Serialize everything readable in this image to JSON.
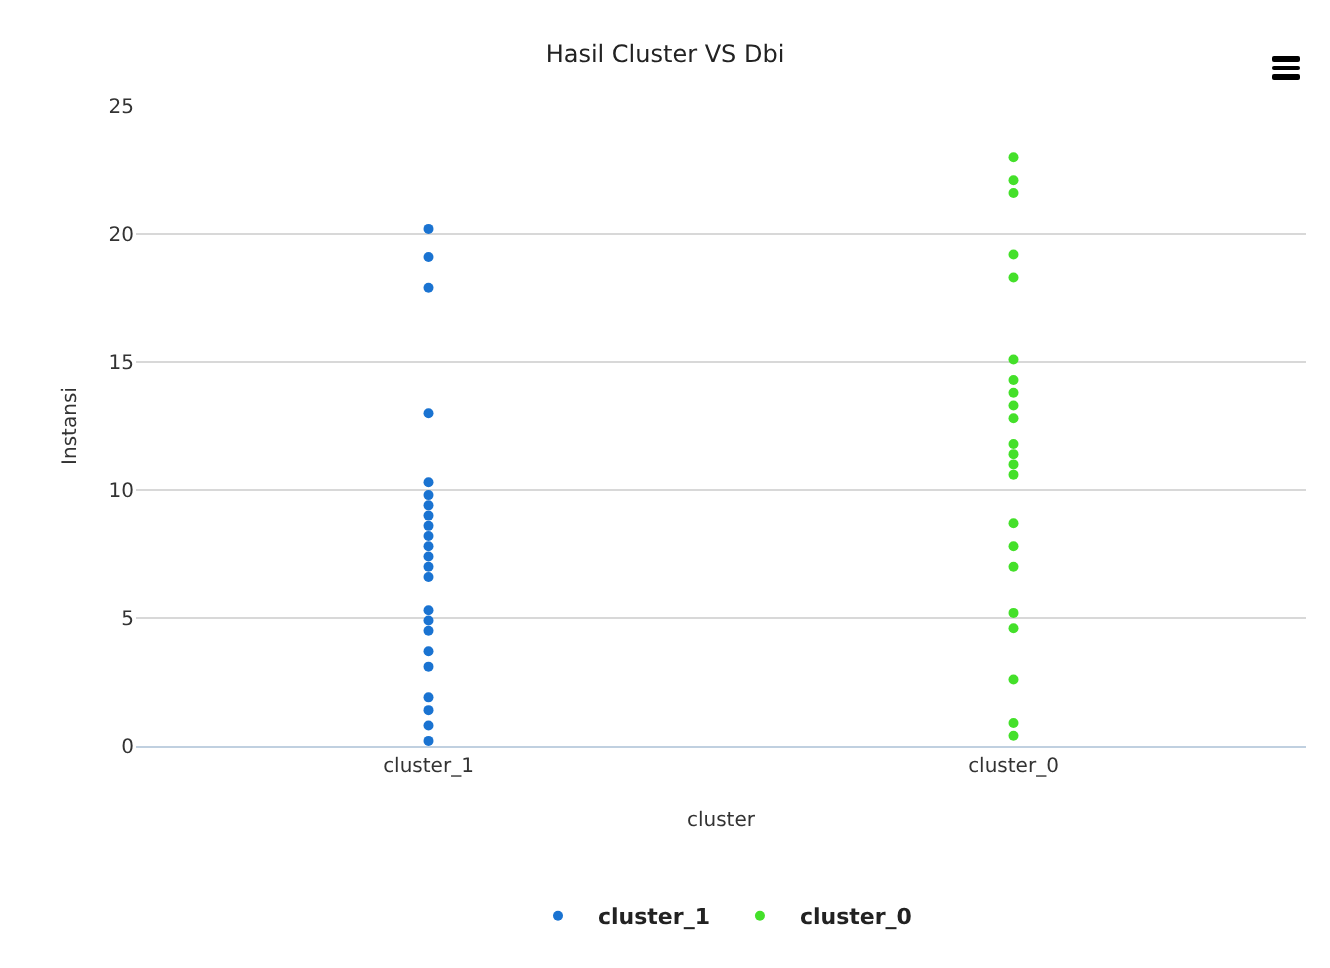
{
  "chart_data": {
    "type": "scatter",
    "title": "Hasil Cluster VS Dbi",
    "xlabel": "cluster",
    "ylabel": "Instansi",
    "categories": [
      "cluster_1",
      "cluster_0"
    ],
    "ylim": [
      0,
      25
    ],
    "yticks": [
      0,
      5,
      10,
      15,
      20,
      25
    ],
    "grid": "y",
    "legend": "bottom",
    "marker": "circle",
    "series": [
      {
        "name": "cluster_1",
        "color": "#1a73d1",
        "x": [
          "cluster_1",
          "cluster_1",
          "cluster_1",
          "cluster_1",
          "cluster_1",
          "cluster_1",
          "cluster_1",
          "cluster_1",
          "cluster_1",
          "cluster_1",
          "cluster_1",
          "cluster_1",
          "cluster_1",
          "cluster_1",
          "cluster_1",
          "cluster_1",
          "cluster_1",
          "cluster_1",
          "cluster_1",
          "cluster_1",
          "cluster_1",
          "cluster_1",
          "cluster_1"
        ],
        "values": [
          20.2,
          19.1,
          17.9,
          13,
          10.3,
          9.8,
          6.6,
          5.3,
          4.9,
          4.5,
          3.7,
          3.1,
          1.9,
          1.4,
          0.8,
          0.2,
          7.0,
          7.4,
          7.8,
          8.2,
          8.6,
          9.0,
          9.4
        ]
      },
      {
        "name": "cluster_0",
        "color": "#44e02a",
        "x": [
          "cluster_0",
          "cluster_0",
          "cluster_0",
          "cluster_0",
          "cluster_0",
          "cluster_0",
          "cluster_0",
          "cluster_0",
          "cluster_0",
          "cluster_0",
          "cluster_0",
          "cluster_0",
          "cluster_0",
          "cluster_0",
          "cluster_0",
          "cluster_0",
          "cluster_0",
          "cluster_0",
          "cluster_0",
          "cluster_0",
          "cluster_0",
          "cluster_0"
        ],
        "values": [
          23,
          22.1,
          21.6,
          19.2,
          18.3,
          15.1,
          14.3,
          13.8,
          13.3,
          12.8,
          11.8,
          11.4,
          11,
          10.6,
          8.7,
          7.8,
          7,
          5.2,
          4.6,
          2.6,
          0.9,
          0.4
        ]
      }
    ]
  }
}
